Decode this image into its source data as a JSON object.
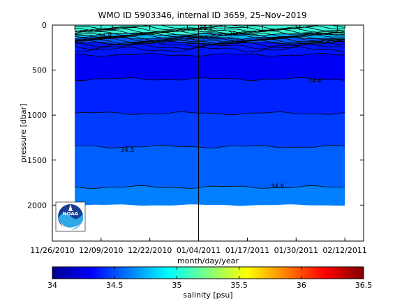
{
  "chart_data": [
    {
      "type": "heatmap",
      "title": "WMO ID 5903346, internal ID 3659, 25–Nov–2019",
      "xlabel": "month/day/year",
      "ylabel": "pressure [dbar]",
      "x_tick_labels": [
        "11/26/2010",
        "12/09/2010",
        "12/22/2010",
        "01/04/2011",
        "01/17/2011",
        "01/30/2011",
        "02/12/2011"
      ],
      "x_ticks_days_after_2010_11_26": [
        0,
        13,
        26,
        39,
        52,
        65,
        78
      ],
      "xlim": [
        "11/26/2010",
        "02/17/2011"
      ],
      "y_tick_labels": [
        "0",
        "500",
        "1000",
        "1500",
        "2000"
      ],
      "y_ticks": [
        0,
        500,
        1000,
        1500,
        2000
      ],
      "ylim": [
        0,
        2400
      ],
      "y_reversed": true,
      "profile_dates_range": [
        "12/02/2010",
        "02/12/2011"
      ],
      "marked_profile_date": "01/04/2011",
      "colormap": "jet",
      "contour_labels": [
        {
          "text": "34.8",
          "date": "12/10/2010",
          "pressure": 120
        },
        {
          "text": "35.2",
          "date": "01/06/2011",
          "pressure": 30
        },
        {
          "text": "35",
          "date": "01/13/2011",
          "pressure": 95
        },
        {
          "text": "34.6",
          "date": "02/04/2011",
          "pressure": 615
        },
        {
          "text": "34.5",
          "date": "12/16/2010",
          "pressure": 1385
        },
        {
          "text": "34.6",
          "date": "01/25/2011",
          "pressure": 1790
        }
      ],
      "field_bands": [
        {
          "pressure_range": [
            0,
            100
          ],
          "salinity": 34.95,
          "color": "#37f5d7"
        },
        {
          "pressure_range": [
            100,
            140
          ],
          "salinity": 34.8,
          "color": "#00b6ff"
        },
        {
          "pressure_range": [
            140,
            200
          ],
          "salinity": 34.6,
          "color": "#0058ff"
        },
        {
          "pressure_range": [
            200,
            330
          ],
          "salinity": 34.3,
          "color": "#0014ff"
        },
        {
          "pressure_range": [
            330,
            600
          ],
          "salinity": 34.22,
          "color": "#0000f4"
        },
        {
          "pressure_range": [
            600,
            980
          ],
          "salinity": 34.35,
          "color": "#0022ff"
        },
        {
          "pressure_range": [
            980,
            1350
          ],
          "salinity": 34.45,
          "color": "#003cff"
        },
        {
          "pressure_range": [
            1350,
            1800
          ],
          "salinity": 34.55,
          "color": "#0060ff"
        },
        {
          "pressure_range": [
            1800,
            2000
          ],
          "salinity": 34.65,
          "color": "#0080ff"
        }
      ]
    },
    {
      "type": "colorbar",
      "label": "salinity [psu]",
      "range": [
        34,
        36.5
      ],
      "ticks": [
        34,
        34.5,
        35,
        35.5,
        36,
        36.5
      ],
      "tick_labels": [
        "34",
        "34.5",
        "35",
        "35.5",
        "36",
        "36.5"
      ],
      "colormap": "jet"
    }
  ],
  "logo": {
    "name": "NOAA emblem",
    "text": "NOAA"
  }
}
